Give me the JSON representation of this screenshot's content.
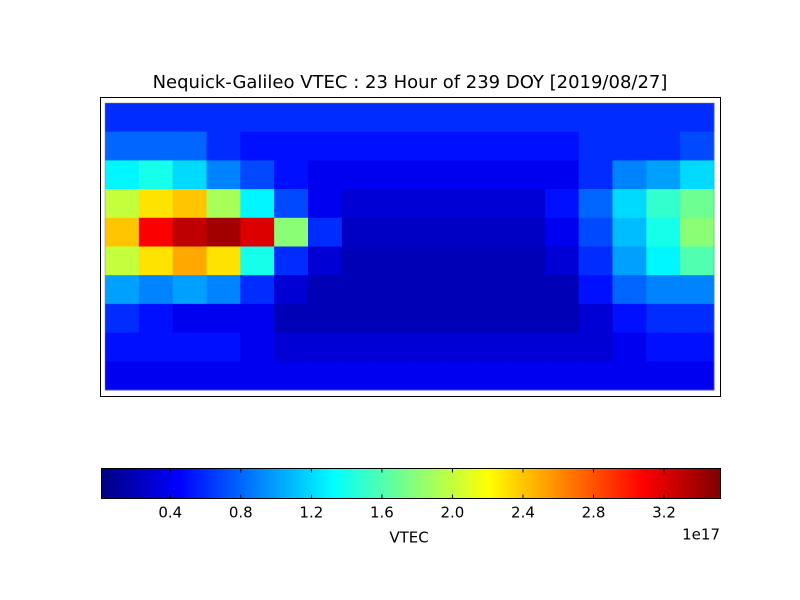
{
  "chart_data": {
    "type": "heatmap",
    "title": "Nequick-Galileo VTEC : 23 Hour of 239 DOY [2019/08/27]",
    "values": [
      [
        0.6,
        0.6,
        0.6,
        0.6,
        0.6,
        0.6,
        0.6,
        0.6,
        0.6,
        0.6,
        0.6,
        0.6,
        0.6,
        0.6,
        0.6,
        0.6,
        0.6,
        0.6
      ],
      [
        0.8,
        0.8,
        0.8,
        0.6,
        0.5,
        0.5,
        0.5,
        0.5,
        0.5,
        0.5,
        0.5,
        0.5,
        0.5,
        0.5,
        0.6,
        0.6,
        0.6,
        0.7
      ],
      [
        1.3,
        1.4,
        1.2,
        0.9,
        0.7,
        0.5,
        0.4,
        0.4,
        0.4,
        0.4,
        0.4,
        0.4,
        0.4,
        0.4,
        0.6,
        0.9,
        1.0,
        1.2
      ],
      [
        2.0,
        2.3,
        2.4,
        1.9,
        1.3,
        0.7,
        0.4,
        0.3,
        0.3,
        0.3,
        0.3,
        0.3,
        0.3,
        0.5,
        0.8,
        1.2,
        1.5,
        1.7
      ],
      [
        2.4,
        3.1,
        3.3,
        3.4,
        3.2,
        1.8,
        0.6,
        0.25,
        0.25,
        0.25,
        0.25,
        0.25,
        0.25,
        0.4,
        0.7,
        1.1,
        1.4,
        1.8
      ],
      [
        2.0,
        2.3,
        2.5,
        2.3,
        1.4,
        0.6,
        0.3,
        0.2,
        0.2,
        0.2,
        0.2,
        0.2,
        0.2,
        0.3,
        0.6,
        1.0,
        1.3,
        1.6
      ],
      [
        1.0,
        0.9,
        1.0,
        0.9,
        0.6,
        0.3,
        0.2,
        0.2,
        0.2,
        0.2,
        0.2,
        0.2,
        0.2,
        0.2,
        0.5,
        0.8,
        0.9,
        0.9
      ],
      [
        0.6,
        0.5,
        0.4,
        0.4,
        0.4,
        0.2,
        0.2,
        0.2,
        0.2,
        0.2,
        0.2,
        0.2,
        0.2,
        0.2,
        0.3,
        0.5,
        0.6,
        0.6
      ],
      [
        0.5,
        0.5,
        0.5,
        0.5,
        0.4,
        0.3,
        0.3,
        0.3,
        0.3,
        0.3,
        0.3,
        0.3,
        0.3,
        0.3,
        0.3,
        0.4,
        0.5,
        0.5
      ],
      [
        0.4,
        0.4,
        0.4,
        0.4,
        0.4,
        0.4,
        0.4,
        0.4,
        0.4,
        0.4,
        0.4,
        0.4,
        0.4,
        0.4,
        0.4,
        0.4,
        0.4,
        0.4
      ]
    ],
    "colorbar": {
      "label": "VTEC",
      "offset_label": "1e17",
      "clim": [
        0.01,
        3.52
      ],
      "ticks": [
        0.4,
        0.8,
        1.2,
        1.6,
        {
          "value": 2,
          "label": "2.0"
        },
        2.4,
        2.8,
        3.2
      ],
      "colormap": "jet"
    }
  }
}
